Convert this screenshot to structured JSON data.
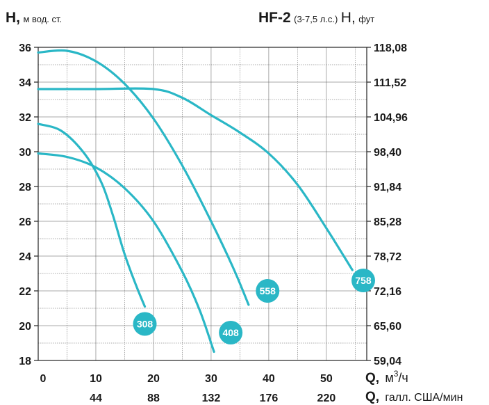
{
  "header": {
    "left_label_bold": "H,",
    "left_label_unit": "м вод. ст.",
    "model": "HF-2",
    "power": "(3-7,5 л.с.)",
    "right_label": "H,",
    "right_label_unit": "фут"
  },
  "chart_data": {
    "type": "line",
    "ylim": [
      18,
      36
    ],
    "xlim": [
      0,
      57
    ],
    "grid": true,
    "y_ticks": [
      "36",
      "34",
      "32",
      "30",
      "28",
      "26",
      "24",
      "22",
      "20",
      "18"
    ],
    "y2_ticks": [
      "118,08",
      "111,52",
      "104,96",
      "98,40",
      "91,84",
      "85,28",
      "78,72",
      "72,16",
      "65,60",
      "59,04"
    ],
    "x_ticks": [
      "0",
      "10",
      "20",
      "30",
      "40",
      "50"
    ],
    "x2_ticks": [
      "44",
      "88",
      "132",
      "176",
      "220"
    ],
    "xlabel_prefix": "Q,",
    "xlabel_unit": "м",
    "xlabel_sup": "3",
    "xlabel_suffix": "/ч",
    "x2label_prefix": "Q,",
    "x2label_unit": "галл. США/мин",
    "series": [
      {
        "name": "308",
        "color": "#2ab7c6",
        "x": [
          0,
          4,
          8,
          11,
          13,
          15,
          17,
          18.5
        ],
        "y": [
          31.6,
          31.2,
          29.9,
          28.2,
          26.3,
          24.1,
          22.3,
          21.1
        ]
      },
      {
        "name": "408",
        "color": "#2ab7c6",
        "x": [
          0,
          5,
          10,
          15,
          20,
          25,
          28,
          30.5
        ],
        "y": [
          29.9,
          29.7,
          29.1,
          27.9,
          26,
          23.1,
          20.9,
          18.5
        ]
      },
      {
        "name": "558",
        "color": "#2ab7c6",
        "x": [
          0,
          5,
          10,
          15,
          20,
          25,
          30,
          34,
          36.5
        ],
        "y": [
          35.7,
          35.8,
          35.2,
          33.9,
          31.9,
          29.2,
          26,
          23.2,
          21.2
        ]
      },
      {
        "name": "758",
        "color": "#2ab7c6",
        "x": [
          0,
          10,
          20,
          25,
          30,
          35,
          40,
          45,
          50,
          54.5
        ],
        "y": [
          33.6,
          33.6,
          33.6,
          33.1,
          32.1,
          31.1,
          29.9,
          28.1,
          25.6,
          23.2
        ]
      }
    ],
    "badges": [
      {
        "label": "308",
        "x": 18.5,
        "y": 20.1
      },
      {
        "label": "408",
        "x": 33.4,
        "y": 19.6
      },
      {
        "label": "558",
        "x": 39.8,
        "y": 22.0
      },
      {
        "label": "758",
        "x": 56.4,
        "y": 22.6
      }
    ]
  }
}
